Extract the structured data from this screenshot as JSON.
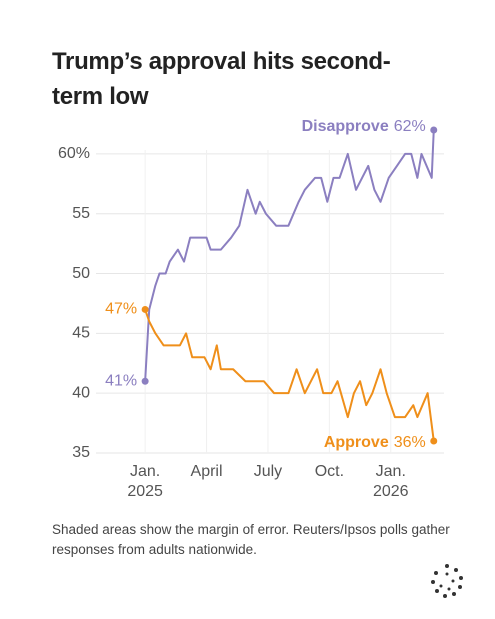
{
  "chart_data": {
    "type": "line",
    "title": "Trump’s approval hits second-term low",
    "note": "Shaded areas show the margin of error. Reuters/Ipsos polls gather responses from adults nationwide.",
    "xlim": [
      -2.4,
      14.6
    ],
    "xticks": [
      {
        "value": 0,
        "label": "Jan.\n2025"
      },
      {
        "value": 3,
        "label": "April"
      },
      {
        "value": 6,
        "label": "July"
      },
      {
        "value": 9,
        "label": "Oct."
      },
      {
        "value": 12,
        "label": "Jan.\n2026"
      }
    ],
    "ylim": [
      35,
      62
    ],
    "yticks": [
      {
        "value": 60,
        "label": "60%"
      },
      55,
      50,
      45,
      40,
      35
    ],
    "grid": true,
    "series": [
      {
        "name": "Disapprove",
        "color": "#8b7fc0",
        "x": [
          0,
          0.2,
          0.5,
          0.7,
          1.0,
          1.2,
          1.6,
          1.9,
          2.2,
          2.7,
          3.0,
          3.2,
          3.7,
          4.2,
          4.6,
          5.0,
          5.4,
          5.6,
          5.9,
          6.4,
          7.0,
          7.5,
          7.8,
          8.3,
          8.6,
          8.9,
          9.2,
          9.5,
          9.9,
          10.3,
          10.6,
          10.9,
          11.2,
          11.5,
          11.9,
          12.3,
          12.7,
          13.0,
          13.3,
          13.5,
          14.0,
          14.1
        ],
        "values": [
          41,
          47,
          49,
          50,
          50,
          51,
          52,
          51,
          53,
          53,
          53,
          52,
          52,
          53,
          54,
          57,
          55,
          56,
          55,
          54,
          54,
          56,
          57,
          58,
          58,
          56,
          58,
          58,
          60,
          57,
          58,
          59,
          57,
          56,
          58,
          59,
          60,
          60,
          58,
          60,
          58,
          62
        ],
        "value_labels": [
          "41%",
          null,
          null,
          null,
          null,
          null,
          null,
          null,
          null,
          null,
          null,
          null,
          null,
          null,
          null,
          null,
          null,
          null,
          null,
          null,
          null,
          null,
          null,
          null,
          null,
          null,
          null,
          null,
          null,
          null,
          null,
          null,
          null,
          null,
          null,
          null,
          null,
          null,
          null,
          null,
          null,
          "62%"
        ]
      },
      {
        "name": "Approve",
        "color": "#ef8f1a",
        "x": [
          0,
          0.2,
          0.5,
          0.9,
          1.5,
          1.7,
          2.0,
          2.3,
          2.9,
          3.2,
          3.5,
          3.7,
          4.3,
          4.9,
          5.8,
          6.3,
          7.0,
          7.4,
          7.8,
          8.1,
          8.4,
          8.7,
          9.1,
          9.4,
          9.9,
          10.2,
          10.5,
          10.8,
          11.1,
          11.5,
          11.8,
          12.2,
          12.7,
          13.1,
          13.3,
          13.8,
          14.1
        ],
        "values": [
          47,
          46,
          45,
          44,
          44,
          44,
          45,
          43,
          43,
          42,
          44,
          42,
          42,
          41,
          41,
          40,
          40,
          42,
          40,
          41,
          42,
          40,
          40,
          41,
          38,
          40,
          41,
          39,
          40,
          42,
          40,
          38,
          38,
          39,
          38,
          40,
          36
        ],
        "value_labels": [
          "47%",
          null,
          null,
          null,
          null,
          null,
          null,
          null,
          null,
          null,
          null,
          null,
          null,
          null,
          null,
          null,
          null,
          null,
          null,
          null,
          null,
          null,
          null,
          null,
          null,
          null,
          null,
          null,
          null,
          null,
          null,
          null,
          null,
          null,
          null,
          null,
          "36%"
        ]
      }
    ]
  }
}
